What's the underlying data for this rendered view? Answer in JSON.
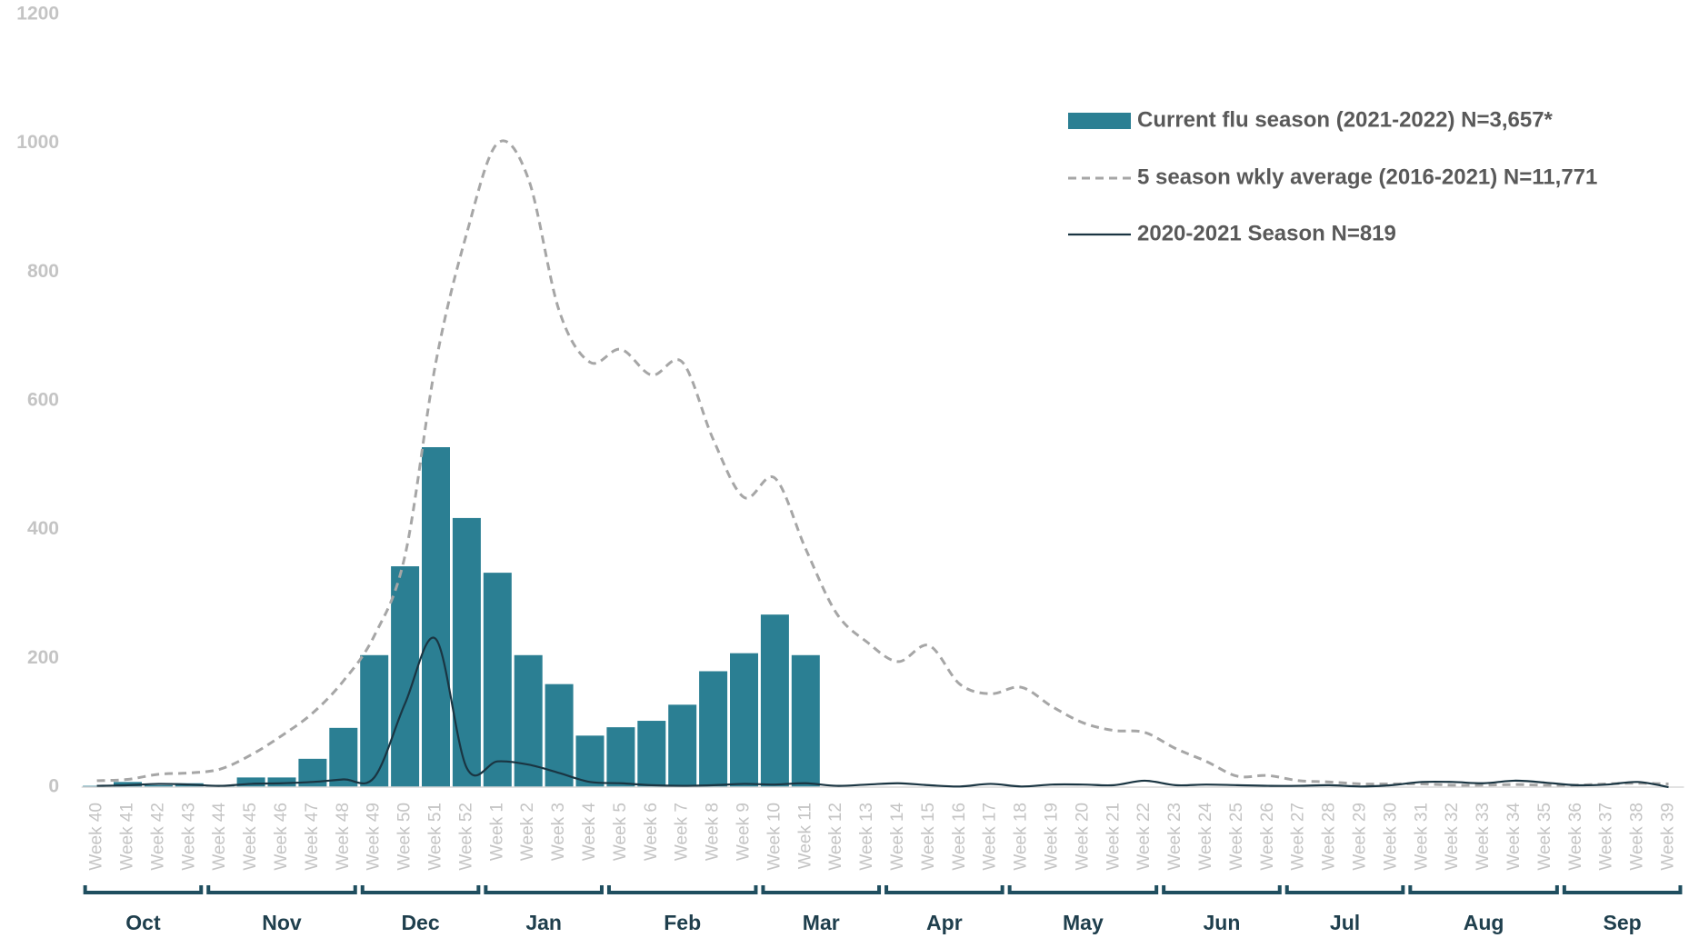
{
  "chart_data": {
    "type": "bar",
    "categories": [
      "Week 40",
      "Week 41",
      "Week 42",
      "Week 43",
      "Week 44",
      "Week 45",
      "Week 46",
      "Week 47",
      "Week 48",
      "Week 49",
      "Week 50",
      "Week 51",
      "Week 52",
      "Week 1",
      "Week 2",
      "Week 3",
      "Week 4",
      "Week 5",
      "Week 6",
      "Week 7",
      "Week 8",
      "Week 9",
      "Week 10",
      "Week 11",
      "Week 12",
      "Week 13",
      "Week 14",
      "Week 15",
      "Week 16",
      "Week 17",
      "Week 18",
      "Week 19",
      "Week 20",
      "Week 21",
      "Week 22",
      "Week 23",
      "Week 24",
      "Week 25",
      "Week 26",
      "Week 27",
      "Week 28",
      "Week 29",
      "Week 30",
      "Week 31",
      "Week 32",
      "Week 33",
      "Week 34",
      "Week 35",
      "Week 36",
      "Week 37",
      "Week 38",
      "Week 39"
    ],
    "month_groups": [
      {
        "label": "Oct",
        "span": 4
      },
      {
        "label": "Nov",
        "span": 5
      },
      {
        "label": "Dec",
        "span": 4
      },
      {
        "label": "Jan",
        "span": 4
      },
      {
        "label": "Feb",
        "span": 5
      },
      {
        "label": "Mar",
        "span": 4
      },
      {
        "label": "Apr",
        "span": 4
      },
      {
        "label": "May",
        "span": 5
      },
      {
        "label": "Jun",
        "span": 4
      },
      {
        "label": "Jul",
        "span": 4
      },
      {
        "label": "Aug",
        "span": 5
      },
      {
        "label": "Sep",
        "span": 4
      }
    ],
    "series": [
      {
        "name": "Current flu season (2021-2022) N=3,657*",
        "type": "bar",
        "color": "#2b7f93",
        "values": [
          2,
          8,
          3,
          6,
          2,
          15,
          15,
          44,
          92,
          205,
          343,
          528,
          418,
          333,
          205,
          160,
          80,
          93,
          103,
          128,
          180,
          208,
          268,
          205,
          null,
          null,
          null,
          null,
          null,
          null,
          null,
          null,
          null,
          null,
          null,
          null,
          null,
          null,
          null,
          null,
          null,
          null,
          null,
          null,
          null,
          null,
          null,
          null,
          null,
          null,
          null,
          null
        ]
      },
      {
        "name": "5 season wkly average (2016-2021) N=11,771",
        "type": "line",
        "dash": true,
        "color": "#a6a6a6",
        "values": [
          10,
          12,
          20,
          22,
          28,
          50,
          80,
          115,
          165,
          235,
          360,
          660,
          860,
          1000,
          945,
          740,
          660,
          680,
          640,
          660,
          540,
          450,
          480,
          370,
          270,
          225,
          195,
          220,
          160,
          145,
          155,
          125,
          100,
          88,
          85,
          60,
          40,
          17,
          18,
          10,
          8,
          5,
          5,
          5,
          3,
          3,
          4,
          3,
          3,
          5,
          6,
          5
        ]
      },
      {
        "name": "2020-2021 Season N=819",
        "type": "line",
        "dash": false,
        "color": "#1a3542",
        "values": [
          2,
          3,
          5,
          4,
          2,
          5,
          6,
          8,
          12,
          15,
          130,
          230,
          30,
          40,
          35,
          22,
          8,
          6,
          3,
          2,
          3,
          5,
          4,
          6,
          2,
          4,
          6,
          3,
          1,
          5,
          1,
          4,
          4,
          3,
          10,
          3,
          4,
          3,
          2,
          2,
          3,
          1,
          3,
          8,
          8,
          6,
          10,
          7,
          3,
          4,
          8,
          0
        ]
      }
    ],
    "ylim": [
      0,
      1200
    ],
    "yticks": [
      0,
      200,
      400,
      600,
      800,
      1000,
      1200
    ],
    "grid": false,
    "legend": "top-right"
  }
}
